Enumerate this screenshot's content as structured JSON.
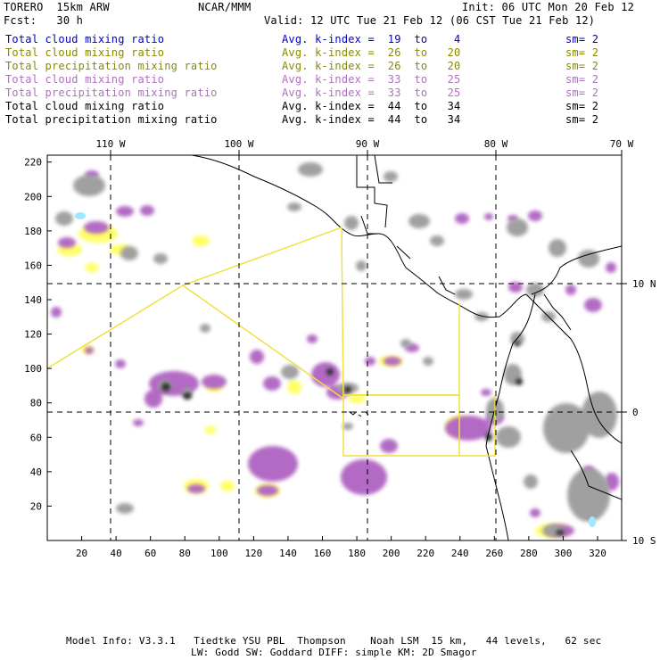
{
  "header": {
    "model": "TORERO  15km ARW",
    "center": "NCAR/MMM",
    "init": "Init: 06 UTC Mon 20 Feb 12",
    "fcst": "Fcst:   30 h",
    "valid": "Valid: 12 UTC Tue 21 Feb 12 (06 CST Tue 21 Feb 12)"
  },
  "legend": [
    {
      "field": "Total cloud mixing ratio",
      "kidx": "Avg. k-index =  19  to    4",
      "sm": "sm= 2",
      "color": "#0000cc"
    },
    {
      "field": "Total cloud mixing ratio",
      "kidx": "Avg. k-index =  26  to   20",
      "sm": "sm= 2",
      "color": "#8a8a00"
    },
    {
      "field": "Total precipitation mixing ratio",
      "kidx": "Avg. k-index =  26  to   20",
      "sm": "sm= 2",
      "color": "#8a8a00"
    },
    {
      "field": "Total cloud mixing ratio",
      "kidx": "Avg. k-index =  33  to   25",
      "sm": "sm= 2",
      "color": "#b070c0"
    },
    {
      "field": "Total precipitation mixing ratio",
      "kidx": "Avg. k-index =  33  to   25",
      "sm": "sm= 2",
      "color": "#b070c0"
    },
    {
      "field": "Total cloud mixing ratio",
      "kidx": "Avg. k-index =  44  to   34",
      "sm": "sm= 2",
      "color": "#000000"
    },
    {
      "field": "Total precipitation mixing ratio",
      "kidx": "Avg. k-index =  44  to   34",
      "sm": "sm= 2",
      "color": "#000000"
    }
  ],
  "map": {
    "x_ticks": [
      "20",
      "40",
      "60",
      "80",
      "100",
      "120",
      "140",
      "160",
      "180",
      "200",
      "220",
      "240",
      "260",
      "280",
      "300",
      "320"
    ],
    "y_ticks": [
      "220",
      "200",
      "180",
      "160",
      "140",
      "120",
      "100",
      "80",
      "60",
      "40",
      "20"
    ],
    "lon_labels": [
      "110 W",
      "100 W",
      "90 W",
      "80 W",
      "70 W"
    ],
    "lat_labels": [
      "10 N",
      "0",
      "10 S"
    ],
    "colors": {
      "grey": "#a0a0a0",
      "purple": "#b36bc4",
      "yellow": "#ffff66",
      "border": "#f0e040",
      "coast": "#000000"
    }
  },
  "footer": {
    "line1": "Model Info: V3.3.1   Tiedtke YSU PBL  Thompson    Noah LSM  15 km,   44 levels,   62 sec",
    "line2": "LW: Godd SW: Goddard DIFF: simple KM: 2D Smagor"
  }
}
